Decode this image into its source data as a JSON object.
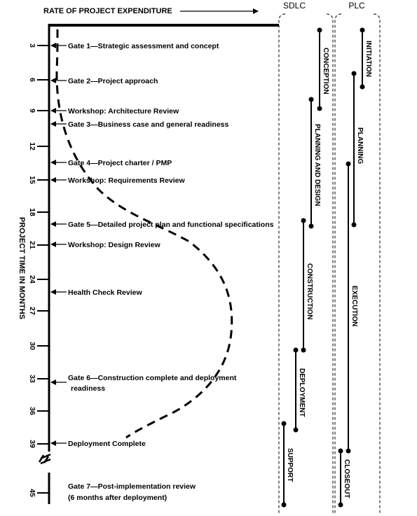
{
  "header": {
    "rate_label": "RATE OF PROJECT EXPENDITURE",
    "sdlc_label": "SDLC",
    "plc_label": "PLC"
  },
  "y_axis": {
    "label": "PROJECT TIME IN MONTHS",
    "ticks": [
      "3",
      "6",
      "9",
      "12",
      "15",
      "18",
      "21",
      "24",
      "27",
      "30",
      "33",
      "36",
      "39",
      "45"
    ]
  },
  "gates": [
    {
      "label": "Gate 1—Strategic assessment and concept"
    },
    {
      "label": "Gate 2—Project approach"
    },
    {
      "label": "Workshop: Architecture Review"
    },
    {
      "label": "Gate 3—Business case and general readiness"
    },
    {
      "label": "Gate 4—Project charter / PMP"
    },
    {
      "label": "Workshop: Requirements Review"
    },
    {
      "label": "Gate 5—Detailed project plan and functional specifications"
    },
    {
      "label": "Workshop: Design Review"
    },
    {
      "label": "Health Check Review"
    },
    {
      "label": "Gate 6—Construction complete and deployment",
      "label2": "readiness"
    },
    {
      "label": "Deployment Complete"
    },
    {
      "label": "Gate 7—Post-implementation review",
      "label2": "(6 months after deployment)"
    }
  ],
  "sdlc_phases": [
    {
      "label": "CONCEPTION"
    },
    {
      "label": "PLANNING AND DESIGN"
    },
    {
      "label": "CONSTRUCTION"
    },
    {
      "label": "DEPLOYMENT"
    },
    {
      "label": "SUPPORT"
    }
  ],
  "plc_phases": [
    {
      "label": "INITIATION"
    },
    {
      "label": "PLANNING"
    },
    {
      "label": "EXECUTION"
    },
    {
      "label": "CLOSEOUT"
    }
  ]
}
